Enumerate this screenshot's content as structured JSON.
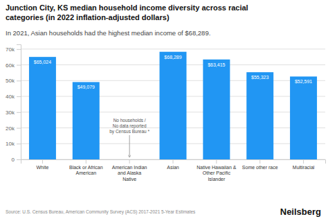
{
  "chart_data": {
    "type": "bar",
    "title": "Junction City, KS median household income diversity across racial\ncategories (in 2022 inflation-adjusted dollars)",
    "subtitle": "In 2021, Asian households had the highest median income of $68,289.",
    "categories": [
      "White",
      "Black or African\nAmerican",
      "American Indian\nand Alaska\nNative",
      "Asian",
      "Native Hawaiian &\nOther Pacific\nIslander",
      "Some other race",
      "Multiracial"
    ],
    "values": [
      65024,
      49079,
      0,
      68289,
      63415,
      55323,
      52591
    ],
    "value_labels": [
      "$65,024",
      "$49,079",
      null,
      "$68,289",
      "$63,415",
      "$55,323",
      "$52,591"
    ],
    "data_labels": true,
    "color": "#2196f3",
    "ylim": [
      0,
      73000
    ],
    "yticks": [
      0,
      {
        "value": 10000,
        "label": "10k"
      },
      {
        "value": 20000,
        "label": "20k"
      },
      {
        "value": 30000,
        "label": "30k"
      },
      {
        "value": 40000,
        "label": "40k"
      },
      {
        "value": 50000,
        "label": "50k"
      },
      {
        "value": 60000,
        "label": "60k"
      },
      {
        "value": 70000,
        "label": "70k"
      }
    ],
    "grid": true,
    "annotations": [
      {
        "text": "No households /\nNo data reported\nby Census Bureau *",
        "x": "American Indian\nand Alaska\nNative"
      }
    ],
    "source": "Source: U.S. Census Bureau, American Community Survey (ACS) 2017-2021 5-Year Estimates",
    "brand": "Neilsberg"
  }
}
